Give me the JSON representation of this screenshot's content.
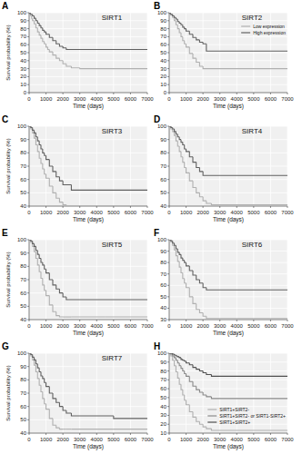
{
  "chart_data": [
    {
      "type": "step",
      "title": "SIRT1",
      "annotations": [
        "A"
      ],
      "xlabel": "Time (days)",
      "ylabel": "Survival probability (%)",
      "xlim": [
        0,
        7000
      ],
      "xticks": [
        0,
        1000,
        2000,
        3000,
        4000,
        5000,
        6000,
        7000
      ],
      "ylim": [
        0,
        100
      ],
      "yticks": [
        0,
        10,
        20,
        30,
        40,
        50,
        60,
        70,
        80,
        90,
        100
      ],
      "grid": true,
      "series": [
        {
          "color": "#b0b0b0",
          "x": [
            0,
            50,
            100,
            150,
            200,
            300,
            400,
            500,
            600,
            700,
            800,
            900,
            1000,
            1100,
            1200,
            1400,
            1600,
            1800,
            2000,
            2200,
            2500,
            3000,
            7000
          ],
          "values": [
            100,
            98,
            96,
            93,
            90,
            86,
            81,
            76,
            72,
            68,
            64,
            61,
            57,
            54,
            51,
            47,
            43,
            40,
            36,
            33,
            31,
            30,
            30
          ]
        },
        {
          "color": "#606060",
          "x": [
            0,
            50,
            100,
            200,
            300,
            400,
            500,
            600,
            700,
            800,
            900,
            1000,
            1200,
            1400,
            1600,
            1800,
            2000,
            2200,
            7000
          ],
          "values": [
            100,
            99,
            98,
            96,
            93,
            90,
            87,
            84,
            81,
            78,
            76,
            73,
            69,
            65,
            61,
            58,
            56,
            54,
            54
          ]
        }
      ]
    },
    {
      "type": "step",
      "title": "SIRT2",
      "annotations": [
        "B"
      ],
      "xlabel": "Time (days)",
      "xlim": [
        0,
        7000
      ],
      "xticks": [
        0,
        1000,
        2000,
        3000,
        4000,
        5000,
        6000,
        7000
      ],
      "ylim": [
        0,
        100
      ],
      "yticks": [
        0,
        10,
        20,
        30,
        40,
        50,
        60,
        70,
        80,
        90,
        100
      ],
      "grid": true,
      "legend": "upper right",
      "series": [
        {
          "name": "Low expression",
          "color": "#b0b0b0",
          "x": [
            0,
            50,
            100,
            200,
            300,
            400,
            500,
            600,
            700,
            800,
            900,
            1000,
            1200,
            1400,
            1600,
            1800,
            2000,
            7000
          ],
          "values": [
            100,
            99,
            97,
            94,
            90,
            85,
            80,
            75,
            70,
            65,
            61,
            57,
            49,
            43,
            38,
            33,
            30,
            30
          ]
        },
        {
          "name": "High expression",
          "color": "#606060",
          "x": [
            0,
            50,
            100,
            200,
            300,
            400,
            500,
            600,
            700,
            800,
            900,
            1000,
            1200,
            1400,
            1600,
            1800,
            2000,
            2200,
            7000
          ],
          "values": [
            100,
            99,
            98,
            96,
            94,
            92,
            89,
            87,
            85,
            82,
            80,
            77,
            73,
            69,
            66,
            63,
            61,
            52,
            52
          ]
        }
      ]
    },
    {
      "type": "step",
      "title": "SIRT3",
      "annotations": [
        "C"
      ],
      "xlabel": "Time (days)",
      "ylabel": "Survival probability (%)",
      "xlim": [
        0,
        7000
      ],
      "xticks": [
        0,
        1000,
        2000,
        3000,
        4000,
        5000,
        6000,
        7000
      ],
      "ylim": [
        40,
        100
      ],
      "yticks": [
        40,
        50,
        60,
        70,
        80,
        90,
        100
      ],
      "grid": true,
      "series": [
        {
          "color": "#b0b0b0",
          "x": [
            0,
            100,
            200,
            300,
            400,
            500,
            600,
            700,
            800,
            900,
            1000,
            1200,
            1400,
            1600,
            1800,
            2000,
            2200,
            2500,
            7000
          ],
          "values": [
            100,
            98,
            95,
            91,
            86,
            81,
            76,
            72,
            68,
            64,
            61,
            55,
            50,
            46,
            43,
            41,
            40,
            40,
            40
          ]
        },
        {
          "color": "#606060",
          "x": [
            0,
            100,
            200,
            300,
            400,
            500,
            600,
            700,
            800,
            900,
            1000,
            1200,
            1400,
            1600,
            1800,
            2000,
            2500,
            7000
          ],
          "values": [
            100,
            99,
            97,
            95,
            92,
            89,
            86,
            83,
            80,
            78,
            75,
            70,
            66,
            62,
            59,
            56,
            52,
            52
          ]
        }
      ]
    },
    {
      "type": "step",
      "title": "SIRT4",
      "annotations": [
        "D"
      ],
      "xlabel": "Time (days)",
      "xlim": [
        0,
        7000
      ],
      "xticks": [
        0,
        1000,
        2000,
        3000,
        4000,
        5000,
        6000,
        7000
      ],
      "ylim": [
        40,
        100
      ],
      "yticks": [
        40,
        50,
        60,
        70,
        80,
        90,
        100
      ],
      "grid": true,
      "series": [
        {
          "color": "#b0b0b0",
          "x": [
            0,
            100,
            200,
            300,
            400,
            500,
            600,
            700,
            800,
            900,
            1000,
            1200,
            1400,
            1600,
            1800,
            2000,
            2200,
            2500,
            7000
          ],
          "values": [
            100,
            98,
            96,
            93,
            89,
            85,
            81,
            77,
            73,
            69,
            65,
            59,
            54,
            50,
            47,
            44,
            42,
            41,
            41
          ]
        },
        {
          "color": "#606060",
          "x": [
            0,
            100,
            200,
            300,
            400,
            500,
            600,
            700,
            800,
            900,
            1000,
            1200,
            1400,
            1600,
            1800,
            2000,
            7000
          ],
          "values": [
            100,
            99,
            98,
            96,
            94,
            92,
            90,
            88,
            86,
            83,
            81,
            77,
            73,
            69,
            66,
            63,
            63
          ]
        }
      ]
    },
    {
      "type": "step",
      "title": "SIRT5",
      "annotations": [
        "E"
      ],
      "xlabel": "Time (days)",
      "ylabel": "Survival probability (%)",
      "xlim": [
        0,
        7000
      ],
      "xticks": [
        0,
        1000,
        2000,
        3000,
        4000,
        5000,
        6000,
        7000
      ],
      "ylim": [
        40,
        100
      ],
      "yticks": [
        40,
        50,
        60,
        70,
        80,
        90,
        100
      ],
      "grid": true,
      "series": [
        {
          "color": "#b0b0b0",
          "x": [
            0,
            100,
            200,
            300,
            400,
            500,
            600,
            700,
            800,
            900,
            1000,
            1200,
            1400,
            1600,
            1800,
            2000,
            2200,
            2500,
            4500,
            7000
          ],
          "values": [
            100,
            98,
            95,
            91,
            86,
            81,
            76,
            71,
            66,
            62,
            58,
            51,
            46,
            43,
            42,
            42,
            42,
            42,
            42,
            42
          ]
        },
        {
          "color": "#606060",
          "x": [
            0,
            100,
            200,
            300,
            400,
            500,
            600,
            700,
            800,
            900,
            1000,
            1200,
            1400,
            1600,
            1800,
            2000,
            2200,
            7000
          ],
          "values": [
            100,
            99,
            97,
            95,
            92,
            89,
            86,
            83,
            81,
            78,
            75,
            70,
            66,
            63,
            60,
            57,
            55,
            55
          ]
        }
      ]
    },
    {
      "type": "step",
      "title": "SIRT6",
      "annotations": [
        "F"
      ],
      "xlabel": "Time (days)",
      "xlim": [
        0,
        7000
      ],
      "xticks": [
        0,
        1000,
        2000,
        3000,
        4000,
        5000,
        6000,
        7000
      ],
      "ylim": [
        30,
        100
      ],
      "yticks": [
        30,
        40,
        50,
        60,
        70,
        80,
        90,
        100
      ],
      "grid": true,
      "series": [
        {
          "color": "#b0b0b0",
          "x": [
            0,
            100,
            200,
            300,
            400,
            500,
            600,
            700,
            800,
            900,
            1000,
            1200,
            1400,
            1600,
            1800,
            2000,
            2200,
            7000
          ],
          "values": [
            100,
            98,
            95,
            91,
            86,
            81,
            76,
            71,
            66,
            62,
            58,
            50,
            44,
            39,
            36,
            33,
            31,
            31
          ]
        },
        {
          "color": "#606060",
          "x": [
            0,
            100,
            200,
            300,
            400,
            500,
            600,
            700,
            800,
            900,
            1000,
            1200,
            1400,
            1600,
            1800,
            2000,
            2200,
            7000
          ],
          "values": [
            100,
            99,
            97,
            95,
            92,
            89,
            87,
            84,
            82,
            80,
            77,
            73,
            69,
            65,
            62,
            58,
            56,
            56
          ]
        }
      ]
    },
    {
      "type": "step",
      "title": "SIRT7",
      "annotations": [
        "G"
      ],
      "xlabel": "Time (days)",
      "ylabel": "Survival probability (%)",
      "xlim": [
        0,
        7000
      ],
      "xticks": [
        0,
        1000,
        2000,
        3000,
        4000,
        5000,
        6000,
        7000
      ],
      "ylim": [
        40,
        100
      ],
      "yticks": [
        40,
        50,
        60,
        70,
        80,
        90,
        100
      ],
      "grid": true,
      "series": [
        {
          "color": "#b0b0b0",
          "x": [
            0,
            100,
            200,
            300,
            400,
            500,
            600,
            700,
            800,
            900,
            1000,
            1200,
            1400,
            1600,
            1800,
            2000,
            2200,
            2500,
            5000,
            7000
          ],
          "values": [
            100,
            98,
            95,
            91,
            86,
            81,
            76,
            71,
            66,
            62,
            58,
            51,
            46,
            44,
            43,
            43,
            43,
            43,
            43,
            43
          ]
        },
        {
          "color": "#606060",
          "x": [
            0,
            100,
            200,
            300,
            400,
            500,
            600,
            700,
            800,
            900,
            1000,
            1200,
            1400,
            1600,
            1800,
            2000,
            2200,
            2500,
            5000,
            7000
          ],
          "values": [
            100,
            99,
            97,
            95,
            92,
            89,
            86,
            83,
            81,
            78,
            75,
            70,
            66,
            63,
            60,
            57,
            55,
            53,
            51,
            51
          ]
        }
      ]
    },
    {
      "type": "step",
      "annotations": [
        "H"
      ],
      "xlabel": "Time (days)",
      "xlim": [
        0,
        7000
      ],
      "xticks": [
        0,
        1000,
        2000,
        3000,
        4000,
        5000,
        6000,
        7000
      ],
      "ylim": [
        10,
        100
      ],
      "yticks": [
        10,
        20,
        30,
        40,
        50,
        60,
        70,
        80,
        90,
        100
      ],
      "grid": true,
      "legend": "lower right",
      "series": [
        {
          "name": "SIRT1+SIRT2-",
          "color": "#b0b0b0",
          "x": [
            0,
            100,
            200,
            300,
            400,
            500,
            600,
            700,
            800,
            900,
            1000,
            1200,
            1400,
            1600,
            1800,
            2000,
            2200,
            2500,
            7000
          ],
          "values": [
            100,
            97,
            92,
            86,
            79,
            72,
            65,
            59,
            53,
            47,
            42,
            34,
            28,
            23,
            20,
            17,
            15,
            13,
            13
          ]
        },
        {
          "name": "SIRT1+SIRT2- or SIRT1-SIRT2+",
          "color": "#888888",
          "x": [
            0,
            100,
            200,
            300,
            400,
            500,
            600,
            700,
            800,
            900,
            1000,
            1200,
            1400,
            1600,
            1800,
            2000,
            2200,
            2500,
            7000
          ],
          "values": [
            100,
            99,
            97,
            95,
            92,
            89,
            86,
            83,
            80,
            77,
            74,
            68,
            63,
            59,
            56,
            53,
            51,
            49,
            49
          ]
        },
        {
          "name": "SIRT1+SIRT2+",
          "color": "#505050",
          "x": [
            0,
            100,
            200,
            300,
            400,
            500,
            600,
            700,
            800,
            900,
            1000,
            1200,
            1400,
            1600,
            1800,
            2000,
            2200,
            2500,
            7000
          ],
          "values": [
            100,
            100,
            99,
            98,
            97,
            96,
            95,
            93,
            92,
            91,
            89,
            87,
            84,
            82,
            80,
            78,
            76,
            74,
            74
          ]
        }
      ]
    }
  ]
}
